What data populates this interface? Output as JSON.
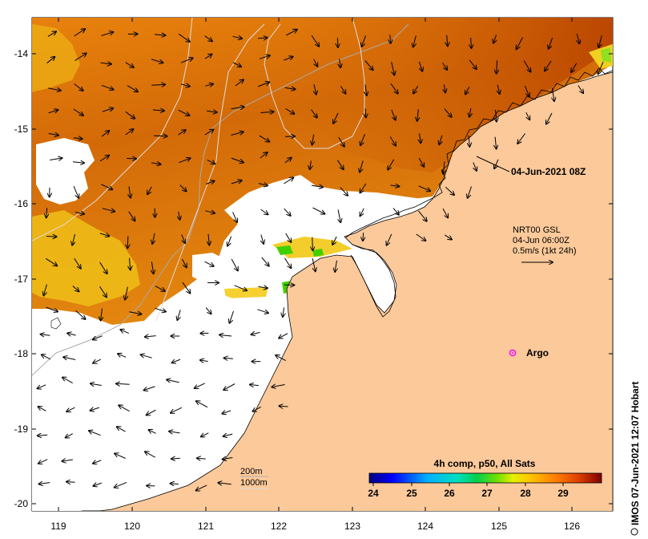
{
  "map": {
    "lon_ticks": [
      "119",
      "120",
      "121",
      "122",
      "123",
      "124",
      "125",
      "126"
    ],
    "lat_ticks": [
      "-14",
      "-15",
      "-16",
      "-17",
      "-18",
      "-19",
      "-20"
    ],
    "timestamp_label": "04-Jun-2021 08Z",
    "current_legend": {
      "line1": "NRT00 GSL",
      "line2": "04-Jun 06:00Z",
      "line3": "0.5m/s (1kt 24h)"
    },
    "argo": {
      "label": "Argo",
      "lon": 125.3,
      "lat": -18.0
    },
    "depth_legend": {
      "line1": "200m",
      "line2": "1000m"
    },
    "colorbar": {
      "title": "4h comp, p50, All Sats",
      "tick_labels": [
        "24",
        "25",
        "26",
        "27",
        "28",
        "29"
      ],
      "colors": [
        "#00007f",
        "#0000ff",
        "#0080ff",
        "#00d8ff",
        "#00e070",
        "#40e000",
        "#c8ff00",
        "#ffe000",
        "#ffa000",
        "#ff6000",
        "#d02000",
        "#7f0000"
      ]
    },
    "credit": "IMOS 07-Jun-2021 12:07 Hobart",
    "colors": {
      "land": "#fcc99a",
      "nodata": "#ffffff",
      "sst_warm": "#c85a08",
      "sst_mid": "#e07a0a",
      "sst_cool": "#f0c010",
      "contour_200": "#aaaaaa",
      "contour_1000": "#dddddd"
    }
  }
}
